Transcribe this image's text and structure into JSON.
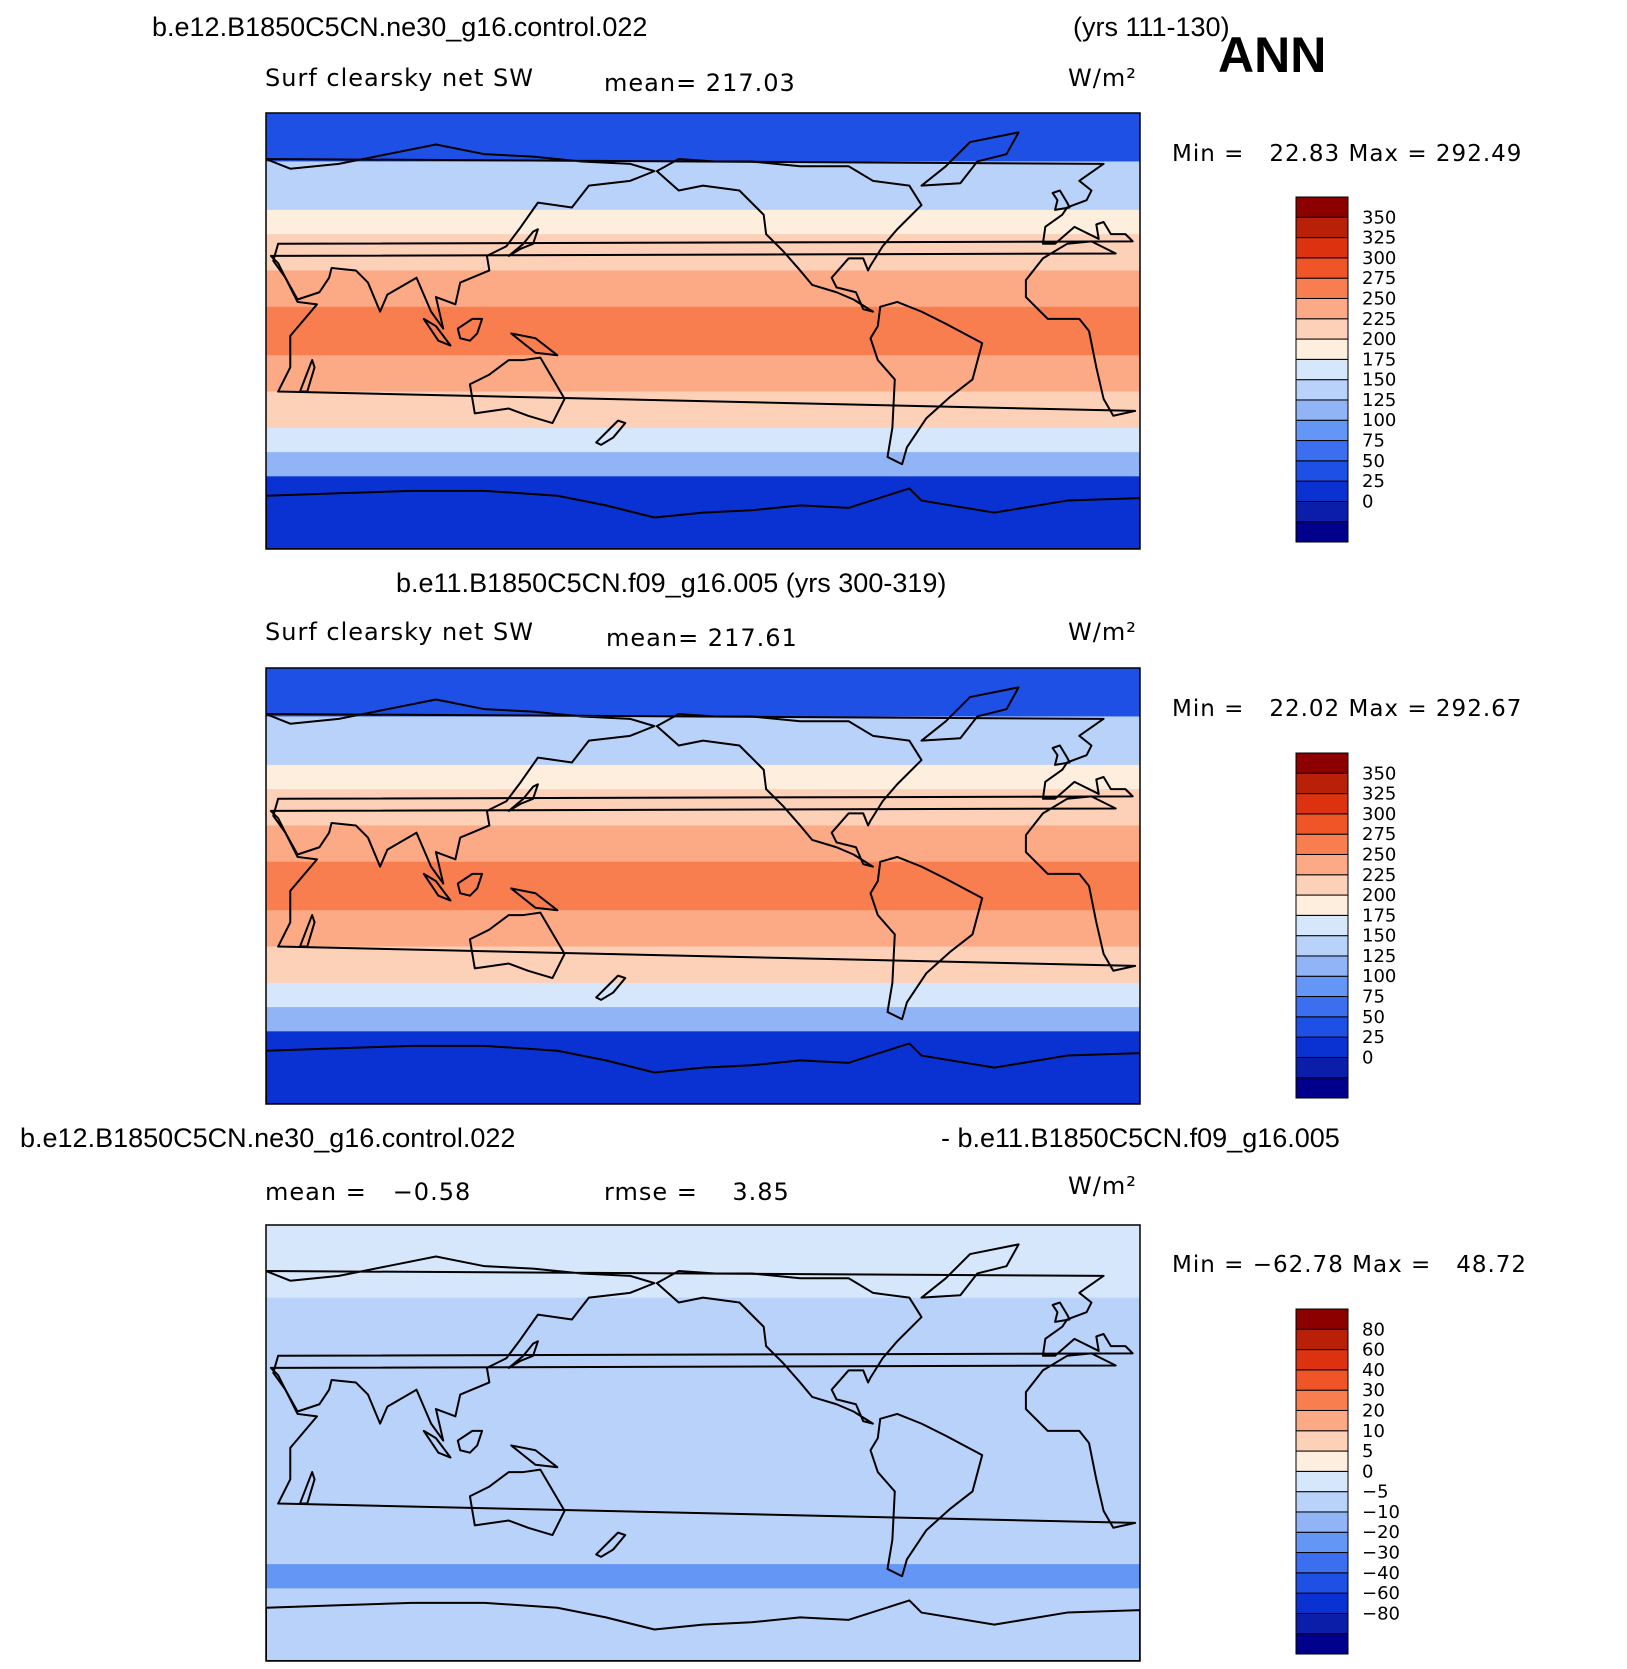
{
  "header": {
    "case_title": "b.e12.B1850C5CN.ne30_g16.control.022",
    "case_years": "(yrs 111-130)",
    "season": "ANN"
  },
  "panels": [
    {
      "field": "Surf clearsky net SW",
      "mean_label": "mean= 217.03",
      "units": "W/m²",
      "minmax": "Min =   22.83 Max = 292.49"
    },
    {
      "title": "b.e11.B1850C5CN.f09_g16.005 (yrs 300-319)",
      "field": "Surf clearsky net SW",
      "mean_label": "mean= 217.61",
      "units": "W/m²",
      "minmax": "Min =   22.02 Max = 292.67"
    },
    {
      "title_left": "b.e12.B1850C5CN.ne30_g16.control.022",
      "title_right": "- b.e11.B1850C5CN.f09_g16.005",
      "mean_label": "mean =   −0.58",
      "rmse_label": "rmse =    3.85",
      "units": "W/m²",
      "minmax": "Min = −62.78 Max =   48.72"
    }
  ],
  "colors": {
    "abs_scale": [
      "#00008c",
      "#0a1eaa",
      "#0a32d2",
      "#1e50e6",
      "#3c6ef0",
      "#6496f5",
      "#91b4f7",
      "#b9d2fa",
      "#d6e6fb",
      "#fdeede",
      "#fdd0b8",
      "#fcaa85",
      "#f87e50",
      "#f05528",
      "#dc3210",
      "#b92008",
      "#8c0000"
    ],
    "diff_scale": [
      "#00008c",
      "#0a1eaa",
      "#0a32d2",
      "#1e50e6",
      "#3c6ef0",
      "#6496f5",
      "#91b4f7",
      "#b9d2fa",
      "#d6e6fb",
      "#fdeede",
      "#fdd0b8",
      "#fcaa85",
      "#f87e50",
      "#f05528",
      "#dc3210",
      "#b92008",
      "#8c0000"
    ]
  },
  "chart_data": [
    {
      "type": "heatmap",
      "title": "b.e12.B1850C5CN.ne30_g16.control.022 (yrs 111-130)",
      "variable": "Surf clearsky net SW",
      "units": "W/m²",
      "mean": 217.03,
      "min": 22.83,
      "max": 292.49,
      "colorbar_ticks": [
        "350",
        "325",
        "300",
        "275",
        "250",
        "225",
        "200",
        "175",
        "150",
        "125",
        "100",
        "75",
        "50",
        "25",
        "0"
      ],
      "zonal_bands": [
        {
          "lat_range": [
            70,
            90
          ],
          "value": 50
        },
        {
          "lat_range": [
            50,
            70
          ],
          "value": 150
        },
        {
          "lat_range": [
            40,
            50
          ],
          "value": 200
        },
        {
          "lat_range": [
            25,
            40
          ],
          "value": 240
        },
        {
          "lat_range": [
            10,
            25
          ],
          "value": 265
        },
        {
          "lat_range": [
            -10,
            10
          ],
          "value": 285
        },
        {
          "lat_range": [
            -25,
            -10
          ],
          "value": 265
        },
        {
          "lat_range": [
            -40,
            -25
          ],
          "value": 240
        },
        {
          "lat_range": [
            -50,
            -40
          ],
          "value": 195
        },
        {
          "lat_range": [
            -60,
            -50
          ],
          "value": 140
        },
        {
          "lat_range": [
            -90,
            -60
          ],
          "value": 40
        }
      ]
    },
    {
      "type": "heatmap",
      "title": "b.e11.B1850C5CN.f09_g16.005 (yrs 300-319)",
      "variable": "Surf clearsky net SW",
      "units": "W/m²",
      "mean": 217.61,
      "min": 22.02,
      "max": 292.67,
      "colorbar_ticks": [
        "350",
        "325",
        "300",
        "275",
        "250",
        "225",
        "200",
        "175",
        "150",
        "125",
        "100",
        "75",
        "50",
        "25",
        "0"
      ],
      "zonal_bands": [
        {
          "lat_range": [
            70,
            90
          ],
          "value": 50
        },
        {
          "lat_range": [
            50,
            70
          ],
          "value": 150
        },
        {
          "lat_range": [
            40,
            50
          ],
          "value": 200
        },
        {
          "lat_range": [
            25,
            40
          ],
          "value": 240
        },
        {
          "lat_range": [
            10,
            25
          ],
          "value": 265
        },
        {
          "lat_range": [
            -10,
            10
          ],
          "value": 285
        },
        {
          "lat_range": [
            -25,
            -10
          ],
          "value": 265
        },
        {
          "lat_range": [
            -40,
            -25
          ],
          "value": 240
        },
        {
          "lat_range": [
            -50,
            -40
          ],
          "value": 195
        },
        {
          "lat_range": [
            -60,
            -50
          ],
          "value": 140
        },
        {
          "lat_range": [
            -90,
            -60
          ],
          "value": 40
        }
      ]
    },
    {
      "type": "heatmap",
      "title": "b.e12.B1850C5CN.ne30_g16.control.022 - b.e11.B1850C5CN.f09_g16.005",
      "units": "W/m²",
      "mean": -0.58,
      "rmse": 3.85,
      "min": -62.78,
      "max": 48.72,
      "colorbar_ticks": [
        "80",
        "60",
        "40",
        "30",
        "20",
        "10",
        "5",
        "0",
        "−5",
        "−10",
        "−20",
        "−30",
        "−40",
        "−60",
        "−80"
      ],
      "zonal_bands": [
        {
          "lat_range": [
            60,
            90
          ],
          "value": 2
        },
        {
          "lat_range": [
            -50,
            60
          ],
          "value": -2
        },
        {
          "lat_range": [
            -60,
            -50
          ],
          "value": -15
        },
        {
          "lat_range": [
            -90,
            -60
          ],
          "value": -3
        }
      ]
    }
  ]
}
